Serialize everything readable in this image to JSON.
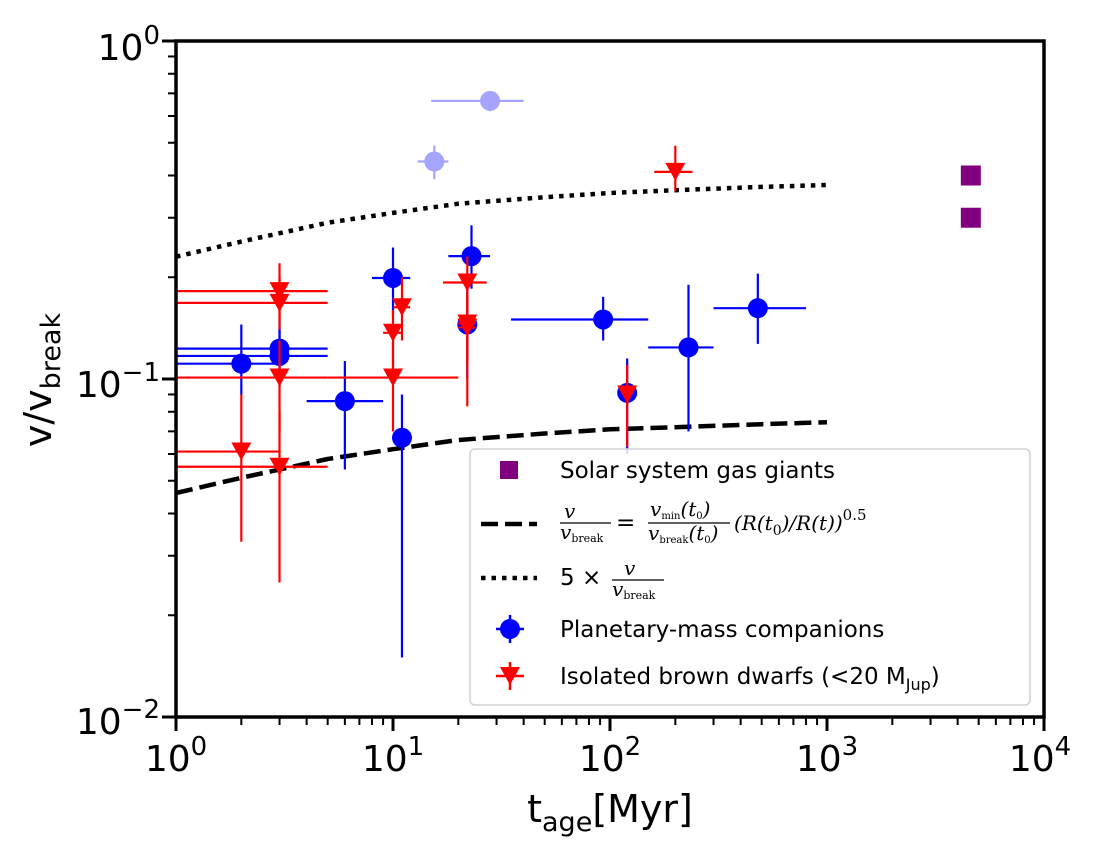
{
  "chart_data": {
    "type": "scatter",
    "xscale": "log",
    "yscale": "log",
    "xlim": [
      1,
      10000
    ],
    "ylim": [
      0.01,
      1
    ],
    "xlabel": {
      "main": "t",
      "sub": "age",
      "tail": "[Myr]"
    },
    "ylabel": {
      "main": "v/v",
      "sub": "break"
    },
    "x_ticks": [
      {
        "value": 1,
        "base": "10",
        "exp": "0"
      },
      {
        "value": 10,
        "base": "10",
        "exp": "1"
      },
      {
        "value": 100,
        "base": "10",
        "exp": "2"
      },
      {
        "value": 1000,
        "base": "10",
        "exp": "3"
      },
      {
        "value": 10000,
        "base": "10",
        "exp": "4"
      }
    ],
    "y_ticks": [
      {
        "value": 0.01,
        "base": "10",
        "exp": "−2"
      },
      {
        "value": 0.1,
        "base": "10",
        "exp": "−1"
      },
      {
        "value": 1,
        "base": "10",
        "exp": "0"
      }
    ],
    "lines": [
      {
        "name": "dashed",
        "style": "dashed",
        "color": "#000000",
        "x": [
          1,
          2,
          5,
          10,
          20,
          50,
          100,
          200,
          500,
          1000
        ],
        "y": [
          0.046,
          0.051,
          0.058,
          0.062,
          0.066,
          0.069,
          0.071,
          0.072,
          0.0735,
          0.0745
        ]
      },
      {
        "name": "dotted",
        "style": "dotted",
        "color": "#000000",
        "x": [
          1,
          2,
          5,
          10,
          20,
          50,
          100,
          200,
          500,
          1000
        ],
        "y": [
          0.23,
          0.255,
          0.29,
          0.31,
          0.33,
          0.345,
          0.355,
          0.362,
          0.37,
          0.375
        ]
      }
    ],
    "series": [
      {
        "name": "Planetary-mass companions",
        "marker": "circle",
        "color": "#0000ff",
        "points": [
          {
            "x": 2.0,
            "y": 0.111,
            "xerr": [
              1.0,
              3.0
            ],
            "yerr": [
              0.09,
              0.145
            ]
          },
          {
            "x": 3.0,
            "y": 0.123,
            "xerr": [
              1.0,
              5.0
            ],
            "yerr": [
              0.1,
              0.15
            ]
          },
          {
            "x": 3.0,
            "y": 0.117,
            "xerr": [
              1.0,
              5.0
            ],
            "yerr": [
              0.095,
              0.14
            ]
          },
          {
            "x": 6.0,
            "y": 0.086,
            "xerr": [
              4.0,
              9.0
            ],
            "yerr": [
              0.054,
              0.113
            ]
          },
          {
            "x": 10.0,
            "y": 0.199,
            "xerr": [
              8.0,
              12.0
            ],
            "yerr": [
              0.155,
              0.245
            ]
          },
          {
            "x": 11.0,
            "y": 0.067,
            "xerr": [
              10.0,
              12.0
            ],
            "yerr": [
              0.015,
              0.09
            ]
          },
          {
            "x": 22.0,
            "y": 0.145,
            "xerr": [
              20.0,
              24.0
            ],
            "yerr": [
              0.1,
              0.19
            ]
          },
          {
            "x": 23.0,
            "y": 0.231,
            "xerr": [
              18.0,
              28.0
            ],
            "yerr": [
              0.185,
              0.285
            ]
          },
          {
            "x": 93.0,
            "y": 0.15,
            "xerr": [
              35.0,
              150.0
            ],
            "yerr": [
              0.13,
              0.175
            ]
          },
          {
            "x": 120.0,
            "y": 0.091,
            "xerr": [
              110.0,
              130.0
            ],
            "yerr": [
              0.06,
              0.115
            ]
          },
          {
            "x": 230.0,
            "y": 0.124,
            "xerr": [
              150.0,
              300.0
            ],
            "yerr": [
              0.07,
              0.19
            ]
          },
          {
            "x": 480.0,
            "y": 0.162,
            "xerr": [
              300.0,
              800.0
            ],
            "yerr": [
              0.127,
              0.205
            ]
          }
        ]
      },
      {
        "name": "Planetary-mass companions (faint)",
        "marker": "circle",
        "color": "#0000ff",
        "faint": true,
        "points": [
          {
            "x": 15.5,
            "y": 0.44,
            "xerr": [
              13.0,
              18.0
            ],
            "yerr": [
              0.39,
              0.49
            ]
          },
          {
            "x": 28.0,
            "y": 0.665,
            "xerr": [
              15.0,
              40.0
            ],
            "yerr": [
              0.62,
              0.71
            ]
          }
        ]
      },
      {
        "name": "Isolated brown dwarfs (<20 MJup)",
        "marker": "triangle-down",
        "color": "#ff0000",
        "points": [
          {
            "x": 2.0,
            "y": 0.061,
            "xerr": [
              1.0,
              3.0
            ],
            "yerr": [
              0.033,
              0.09
            ]
          },
          {
            "x": 3.0,
            "y": 0.055,
            "xerr": [
              1.0,
              5.0
            ],
            "yerr": [
              0.025,
              0.08
            ]
          },
          {
            "x": 3.0,
            "y": 0.101,
            "xerr": [
              1.0,
              5.0
            ],
            "yerr": [
              0.07,
              0.13
            ]
          },
          {
            "x": 3.0,
            "y": 0.168,
            "xerr": [
              1.0,
              5.0
            ],
            "yerr": [
              0.14,
              0.2
            ]
          },
          {
            "x": 3.0,
            "y": 0.182,
            "xerr": [
              1.0,
              5.0
            ],
            "yerr": [
              0.15,
              0.22
            ]
          },
          {
            "x": 10.0,
            "y": 0.137,
            "xerr": [
              9.0,
              11.0
            ],
            "yerr": [
              0.11,
              0.16
            ]
          },
          {
            "x": 10.0,
            "y": 0.101,
            "xerr": [
              5.0,
              20.0
            ],
            "yerr": [
              0.07,
              0.13
            ]
          },
          {
            "x": 11.0,
            "y": 0.163,
            "xerr": [
              10.0,
              12.0
            ],
            "yerr": [
              0.13,
              0.2
            ]
          },
          {
            "x": 22.0,
            "y": 0.193,
            "xerr": [
              17.0,
              27.0
            ],
            "yerr": [
              0.16,
              0.23
            ]
          },
          {
            "x": 22.0,
            "y": 0.146,
            "xerr": [
              20.0,
              24.0
            ],
            "yerr": [
              0.11,
              0.18
            ]
          },
          {
            "x": 22.0,
            "y": 0.142,
            "xerr": [
              20.0,
              24.0
            ],
            "yerr": [
              0.083,
              0.17
            ]
          },
          {
            "x": 120.0,
            "y": 0.09,
            "xerr": [
              115.0,
              125.0
            ],
            "yerr": [
              0.063,
              0.11
            ]
          },
          {
            "x": 200.0,
            "y": 0.41,
            "xerr": [
              160.0,
              240.0
            ],
            "yerr": [
              0.36,
              0.49
            ]
          }
        ]
      },
      {
        "name": "Solar system gas giants",
        "marker": "square",
        "color": "#800080",
        "points": [
          {
            "x": 4600,
            "y": 0.4
          },
          {
            "x": 4600,
            "y": 0.3
          }
        ]
      }
    ],
    "legend": {
      "position": "lower right",
      "entries": [
        {
          "marker": "square",
          "color": "#800080",
          "label": "Solar system gas giants"
        },
        {
          "marker": "dashed-line",
          "color": "#000000",
          "formula": {
            "lhs_num": "v",
            "lhs_den": "v",
            "lhs_den_sub": "break",
            "eq": "=",
            "rhs_num": "v",
            "rhs_num_sub": "min",
            "rhs_num_arg": "(t",
            "rhs_num_arg_sub": "0",
            "rhs_num_close": ")",
            "rhs_den": "v",
            "rhs_den_sub": "break",
            "rhs_den_arg": "(t",
            "rhs_den_arg_sub": "0",
            "rhs_den_close": ")",
            "tail_a": "(R(t",
            "tail_a_sub": "0",
            "tail_b": ")/R(t))",
            "tail_exp": "0.5"
          }
        },
        {
          "marker": "dotted-line",
          "color": "#000000",
          "formula": {
            "prefix": "5 × ",
            "num": "v",
            "den": "v",
            "den_sub": "break"
          }
        },
        {
          "marker": "circle-errorbar",
          "color": "#0000ff",
          "label": "Planetary-mass companions"
        },
        {
          "marker": "triangle-errorbar",
          "color": "#ff0000",
          "label": "Isolated brown dwarfs (<20 M",
          "label_sub": "Jup",
          "label_tail": ")"
        }
      ]
    }
  }
}
